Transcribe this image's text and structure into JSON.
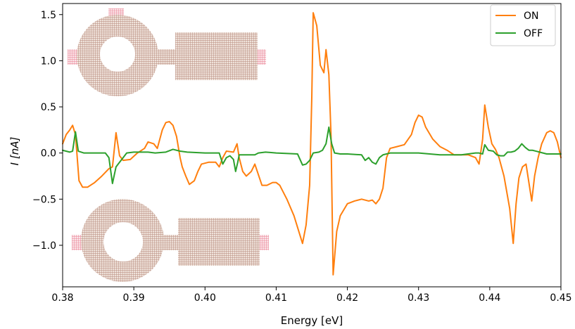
{
  "chart_data": {
    "type": "line",
    "title": "",
    "xlabel": "Energy [eV]",
    "ylabel": "I [nA]",
    "xlim": [
      0.38,
      0.45
    ],
    "ylim": [
      -1.45,
      1.62
    ],
    "grid": false,
    "legend_placement": "top-right",
    "x_ticks": [
      0.38,
      0.39,
      0.4,
      0.41,
      0.42,
      0.43,
      0.44,
      0.45
    ],
    "x_tick_labels": [
      "0.38",
      "0.39",
      "0.40",
      "0.41",
      "0.42",
      "0.43",
      "0.44",
      "0.45"
    ],
    "y_ticks": [
      -1.0,
      -0.5,
      0.0,
      0.5,
      1.0,
      1.5
    ],
    "y_tick_labels": [
      "−1.0",
      "−0.5",
      "0.0",
      "0.5",
      "1.0",
      "1.5"
    ],
    "series": [
      {
        "name": "ON",
        "color": "#ff7f0e",
        "points": [
          [
            0.38,
            0.1
          ],
          [
            0.3805,
            0.2
          ],
          [
            0.381,
            0.25
          ],
          [
            0.3814,
            0.3
          ],
          [
            0.3818,
            0.2
          ],
          [
            0.3823,
            -0.3
          ],
          [
            0.3828,
            -0.37
          ],
          [
            0.3835,
            -0.37
          ],
          [
            0.3845,
            -0.32
          ],
          [
            0.3855,
            -0.25
          ],
          [
            0.3865,
            -0.17
          ],
          [
            0.387,
            -0.15
          ],
          [
            0.3875,
            0.22
          ],
          [
            0.388,
            -0.03
          ],
          [
            0.3885,
            -0.08
          ],
          [
            0.3895,
            -0.07
          ],
          [
            0.3905,
            0.0
          ],
          [
            0.3915,
            0.05
          ],
          [
            0.392,
            0.12
          ],
          [
            0.3928,
            0.1
          ],
          [
            0.3933,
            0.05
          ],
          [
            0.394,
            0.25
          ],
          [
            0.3945,
            0.33
          ],
          [
            0.395,
            0.34
          ],
          [
            0.3955,
            0.3
          ],
          [
            0.396,
            0.18
          ],
          [
            0.3965,
            -0.05
          ],
          [
            0.3968,
            -0.15
          ],
          [
            0.3973,
            -0.25
          ],
          [
            0.3978,
            -0.34
          ],
          [
            0.3985,
            -0.3
          ],
          [
            0.399,
            -0.2
          ],
          [
            0.3995,
            -0.12
          ],
          [
            0.4005,
            -0.1
          ],
          [
            0.4015,
            -0.1
          ],
          [
            0.402,
            -0.15
          ],
          [
            0.4025,
            -0.05
          ],
          [
            0.403,
            0.02
          ],
          [
            0.404,
            0.01
          ],
          [
            0.4045,
            0.1
          ],
          [
            0.4048,
            -0.05
          ],
          [
            0.4053,
            -0.2
          ],
          [
            0.4058,
            -0.25
          ],
          [
            0.4065,
            -0.2
          ],
          [
            0.407,
            -0.12
          ],
          [
            0.408,
            -0.35
          ],
          [
            0.4087,
            -0.35
          ],
          [
            0.4095,
            -0.32
          ],
          [
            0.41,
            -0.32
          ],
          [
            0.4105,
            -0.35
          ],
          [
            0.4115,
            -0.5
          ],
          [
            0.4125,
            -0.68
          ],
          [
            0.4133,
            -0.88
          ],
          [
            0.4137,
            -0.98
          ],
          [
            0.4142,
            -0.78
          ],
          [
            0.4147,
            -0.35
          ],
          [
            0.415,
            0.6
          ],
          [
            0.4152,
            1.52
          ],
          [
            0.4157,
            1.38
          ],
          [
            0.4162,
            0.95
          ],
          [
            0.4167,
            0.87
          ],
          [
            0.417,
            1.12
          ],
          [
            0.4174,
            0.85
          ],
          [
            0.4177,
            0.2
          ],
          [
            0.418,
            -1.32
          ],
          [
            0.4185,
            -0.85
          ],
          [
            0.419,
            -0.68
          ],
          [
            0.42,
            -0.55
          ],
          [
            0.421,
            -0.52
          ],
          [
            0.422,
            -0.5
          ],
          [
            0.423,
            -0.52
          ],
          [
            0.4235,
            -0.51
          ],
          [
            0.424,
            -0.55
          ],
          [
            0.4245,
            -0.5
          ],
          [
            0.425,
            -0.38
          ],
          [
            0.4255,
            -0.05
          ],
          [
            0.426,
            0.05
          ],
          [
            0.427,
            0.07
          ],
          [
            0.428,
            0.09
          ],
          [
            0.429,
            0.2
          ],
          [
            0.4295,
            0.33
          ],
          [
            0.43,
            0.41
          ],
          [
            0.4305,
            0.39
          ],
          [
            0.431,
            0.28
          ],
          [
            0.432,
            0.15
          ],
          [
            0.433,
            0.07
          ],
          [
            0.434,
            0.03
          ],
          [
            0.435,
            -0.02
          ],
          [
            0.436,
            -0.02
          ],
          [
            0.437,
            -0.02
          ],
          [
            0.438,
            -0.05
          ],
          [
            0.4385,
            -0.12
          ],
          [
            0.439,
            0.15
          ],
          [
            0.4393,
            0.52
          ],
          [
            0.4398,
            0.28
          ],
          [
            0.4403,
            0.1
          ],
          [
            0.4408,
            0.04
          ],
          [
            0.4413,
            -0.05
          ],
          [
            0.442,
            -0.25
          ],
          [
            0.4428,
            -0.6
          ],
          [
            0.4433,
            -0.98
          ],
          [
            0.4437,
            -0.55
          ],
          [
            0.4441,
            -0.27
          ],
          [
            0.4446,
            -0.15
          ],
          [
            0.4451,
            -0.12
          ],
          [
            0.4455,
            -0.32
          ],
          [
            0.4459,
            -0.52
          ],
          [
            0.4463,
            -0.25
          ],
          [
            0.4468,
            -0.05
          ],
          [
            0.4473,
            0.1
          ],
          [
            0.448,
            0.22
          ],
          [
            0.4485,
            0.24
          ],
          [
            0.449,
            0.22
          ],
          [
            0.4495,
            0.12
          ],
          [
            0.45,
            -0.05
          ]
        ]
      },
      {
        "name": "OFF",
        "color": "#2ca02c",
        "points": [
          [
            0.38,
            0.03
          ],
          [
            0.381,
            0.01
          ],
          [
            0.3814,
            0.02
          ],
          [
            0.3818,
            0.23
          ],
          [
            0.3822,
            0.02
          ],
          [
            0.383,
            0.0
          ],
          [
            0.386,
            0.0
          ],
          [
            0.3865,
            -0.05
          ],
          [
            0.387,
            -0.33
          ],
          [
            0.3875,
            -0.15
          ],
          [
            0.388,
            -0.1
          ],
          [
            0.3885,
            -0.05
          ],
          [
            0.389,
            0.0
          ],
          [
            0.39,
            0.01
          ],
          [
            0.392,
            0.01
          ],
          [
            0.393,
            0.0
          ],
          [
            0.3945,
            0.01
          ],
          [
            0.3955,
            0.04
          ],
          [
            0.3965,
            0.02
          ],
          [
            0.3975,
            0.01
          ],
          [
            0.4,
            0.0
          ],
          [
            0.402,
            0.0
          ],
          [
            0.4025,
            -0.12
          ],
          [
            0.403,
            -0.05
          ],
          [
            0.4035,
            -0.03
          ],
          [
            0.404,
            -0.07
          ],
          [
            0.4043,
            -0.2
          ],
          [
            0.4046,
            -0.1
          ],
          [
            0.4048,
            -0.02
          ],
          [
            0.406,
            -0.02
          ],
          [
            0.407,
            -0.02
          ],
          [
            0.4075,
            0.0
          ],
          [
            0.4085,
            0.01
          ],
          [
            0.41,
            0.0
          ],
          [
            0.413,
            -0.01
          ],
          [
            0.4137,
            -0.13
          ],
          [
            0.4142,
            -0.12
          ],
          [
            0.4147,
            -0.08
          ],
          [
            0.4152,
            0.0
          ],
          [
            0.416,
            0.01
          ],
          [
            0.4165,
            0.03
          ],
          [
            0.417,
            0.1
          ],
          [
            0.4174,
            0.28
          ],
          [
            0.4178,
            0.1
          ],
          [
            0.4182,
            0.0
          ],
          [
            0.419,
            -0.01
          ],
          [
            0.42,
            -0.01
          ],
          [
            0.422,
            -0.02
          ],
          [
            0.4225,
            -0.08
          ],
          [
            0.423,
            -0.05
          ],
          [
            0.4235,
            -0.1
          ],
          [
            0.424,
            -0.12
          ],
          [
            0.4245,
            -0.05
          ],
          [
            0.425,
            -0.02
          ],
          [
            0.426,
            0.0
          ],
          [
            0.43,
            0.0
          ],
          [
            0.433,
            -0.02
          ],
          [
            0.436,
            -0.02
          ],
          [
            0.438,
            0.0
          ],
          [
            0.4385,
            0.0
          ],
          [
            0.439,
            -0.01
          ],
          [
            0.4393,
            0.09
          ],
          [
            0.4398,
            0.03
          ],
          [
            0.4405,
            0.02
          ],
          [
            0.441,
            -0.02
          ],
          [
            0.4415,
            -0.03
          ],
          [
            0.442,
            -0.03
          ],
          [
            0.4425,
            0.01
          ],
          [
            0.443,
            0.01
          ],
          [
            0.4435,
            0.02
          ],
          [
            0.444,
            0.05
          ],
          [
            0.4445,
            0.1
          ],
          [
            0.445,
            0.06
          ],
          [
            0.4455,
            0.03
          ],
          [
            0.446,
            0.03
          ],
          [
            0.447,
            0.01
          ],
          [
            0.448,
            -0.01
          ],
          [
            0.449,
            -0.01
          ],
          [
            0.45,
            -0.01
          ]
        ]
      }
    ]
  },
  "insets": [
    {
      "name": "device-top-inset",
      "description_color": "#b08070"
    },
    {
      "name": "device-bottom-inset",
      "description_color": "#b08070"
    }
  ]
}
